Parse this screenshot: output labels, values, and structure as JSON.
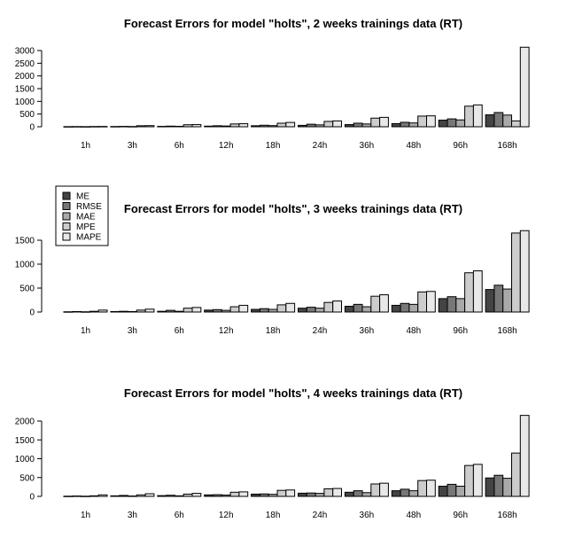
{
  "legend": {
    "entries": [
      "ME",
      "RMSE",
      "MAE",
      "MPE",
      "MAPE"
    ],
    "colors": [
      "#444444",
      "#777777",
      "#a9a9a9",
      "#cccccc",
      "#e8e8e8"
    ]
  },
  "chart_data": [
    {
      "type": "bar",
      "title": "Forecast Errors for model \"holts\", 2 weeks trainings data (RT)",
      "categories": [
        "1h",
        "3h",
        "6h",
        "12h",
        "18h",
        "24h",
        "36h",
        "48h",
        "96h",
        "168h"
      ],
      "ylim": [
        0,
        3000
      ],
      "yticks": [
        0,
        500,
        1000,
        1500,
        2000,
        2500,
        3000
      ],
      "series": [
        {
          "name": "ME",
          "values": [
            5,
            10,
            15,
            25,
            40,
            55,
            85,
            125,
            260,
            470
          ]
        },
        {
          "name": "RMSE",
          "values": [
            8,
            15,
            25,
            40,
            60,
            100,
            140,
            175,
            310,
            560
          ]
        },
        {
          "name": "MAE",
          "values": [
            5,
            10,
            18,
            30,
            45,
            75,
            110,
            150,
            270,
            460
          ]
        },
        {
          "name": "MPE",
          "values": [
            10,
            40,
            80,
            110,
            140,
            210,
            340,
            420,
            810,
            230
          ]
        },
        {
          "name": "MAPE",
          "values": [
            12,
            45,
            85,
            120,
            170,
            230,
            370,
            430,
            860,
            3130
          ]
        }
      ]
    },
    {
      "type": "bar",
      "title": "Forecast Errors for model \"holts\", 3 weeks trainings data (RT)",
      "categories": [
        "1h",
        "3h",
        "6h",
        "12h",
        "18h",
        "24h",
        "36h",
        "48h",
        "96h",
        "168h"
      ],
      "ylim": [
        0,
        1500
      ],
      "yticks": [
        0,
        500,
        1000,
        1500
      ],
      "series": [
        {
          "name": "ME",
          "values": [
            5,
            10,
            15,
            40,
            55,
            80,
            120,
            140,
            280,
            470
          ]
        },
        {
          "name": "RMSE",
          "values": [
            10,
            15,
            35,
            50,
            70,
            100,
            160,
            180,
            320,
            560
          ]
        },
        {
          "name": "MAE",
          "values": [
            5,
            10,
            15,
            35,
            55,
            80,
            110,
            160,
            280,
            480
          ]
        },
        {
          "name": "MPE",
          "values": [
            15,
            40,
            80,
            110,
            150,
            200,
            330,
            420,
            820,
            1650
          ]
        },
        {
          "name": "MAPE",
          "values": [
            40,
            60,
            95,
            140,
            180,
            230,
            360,
            430,
            860,
            1700
          ]
        }
      ]
    },
    {
      "type": "bar",
      "title": "Forecast Errors for model \"holts\", 4 weeks trainings data (RT)",
      "categories": [
        "1h",
        "3h",
        "6h",
        "12h",
        "18h",
        "24h",
        "36h",
        "48h",
        "96h",
        "168h"
      ],
      "ylim": [
        0,
        2000
      ],
      "yticks": [
        0,
        500,
        1000,
        1500,
        2000
      ],
      "series": [
        {
          "name": "ME",
          "values": [
            5,
            15,
            20,
            40,
            60,
            85,
            110,
            150,
            270,
            490
          ]
        },
        {
          "name": "RMSE",
          "values": [
            10,
            25,
            30,
            45,
            65,
            90,
            150,
            190,
            320,
            560
          ]
        },
        {
          "name": "MAE",
          "values": [
            5,
            10,
            15,
            35,
            55,
            80,
            100,
            150,
            270,
            480
          ]
        },
        {
          "name": "MPE",
          "values": [
            15,
            40,
            60,
            110,
            160,
            200,
            330,
            420,
            820,
            1150
          ]
        },
        {
          "name": "MAPE",
          "values": [
            40,
            70,
            80,
            120,
            170,
            210,
            350,
            430,
            850,
            2150
          ]
        }
      ]
    }
  ]
}
